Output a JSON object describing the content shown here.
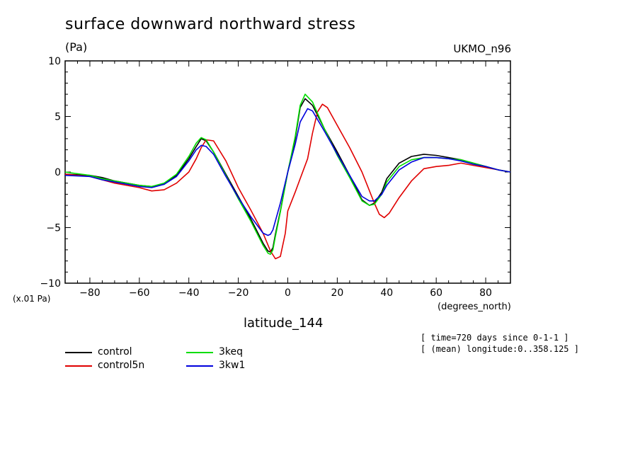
{
  "chart_data": {
    "type": "line",
    "title": "surface downward northward stress",
    "units_label": "(Pa)",
    "model_label": "UKMO_n96",
    "scale_label": "(x.01 Pa)",
    "xlabel": "latitude_144",
    "x_units_label": "(degrees_north)",
    "meta": [
      "[ time=720 days since 0-1-1 ]",
      "[ (mean) longitude:0..358.125 ]"
    ],
    "xlim": [
      -90,
      90
    ],
    "ylim": [
      -10,
      10
    ],
    "xticks": [
      -80,
      -60,
      -40,
      -20,
      0,
      20,
      40,
      60,
      80
    ],
    "yticks": [
      -10,
      -5,
      0,
      5,
      10
    ],
    "ytick_labels": [
      "−10",
      "−5",
      "0",
      "5",
      "10"
    ],
    "xtick_labels": [
      "−80",
      "−60",
      "−40",
      "−20",
      "0",
      "20",
      "40",
      "60",
      "80"
    ],
    "grid": false,
    "legend_placement": "bottom-left",
    "series": [
      {
        "name": "control",
        "color": "#000000",
        "x": [
          -90,
          -80,
          -75,
          -70,
          -60,
          -55,
          -50,
          -45,
          -40,
          -37,
          -35,
          -33,
          -30,
          -25,
          -20,
          -15,
          -10,
          -8,
          -7,
          -6,
          -5,
          -3,
          0,
          3,
          5,
          7,
          10,
          15,
          20,
          25,
          30,
          33,
          35,
          38,
          40,
          45,
          50,
          55,
          60,
          65,
          70,
          75,
          80,
          85,
          90
        ],
        "y": [
          -0.2,
          -0.3,
          -0.5,
          -0.8,
          -1.2,
          -1.3,
          -1.1,
          -0.3,
          1.2,
          2.3,
          3.0,
          2.8,
          1.8,
          -0.2,
          -2.2,
          -4.2,
          -6.4,
          -7.1,
          -7.2,
          -6.8,
          -5.6,
          -3.5,
          0.0,
          3.0,
          5.8,
          6.6,
          6.0,
          3.8,
          1.8,
          -0.3,
          -2.5,
          -3.0,
          -2.8,
          -1.8,
          -0.6,
          0.8,
          1.4,
          1.6,
          1.5,
          1.3,
          1.1,
          0.8,
          0.5,
          0.2,
          0.0
        ]
      },
      {
        "name": "control5n",
        "color": "#e00000",
        "x": [
          -90,
          -80,
          -75,
          -70,
          -60,
          -55,
          -50,
          -45,
          -40,
          -37,
          -35,
          -33,
          -30,
          -25,
          -20,
          -15,
          -10,
          -7,
          -5,
          -3,
          -1,
          0,
          3,
          5,
          8,
          10,
          12,
          14,
          16,
          20,
          25,
          30,
          35,
          37,
          39,
          41,
          45,
          50,
          55,
          60,
          65,
          70,
          75,
          80,
          85,
          90
        ],
        "y": [
          -0.2,
          -0.4,
          -0.7,
          -1.0,
          -1.4,
          -1.7,
          -1.6,
          -1.0,
          0.0,
          1.2,
          2.2,
          2.9,
          2.8,
          1.0,
          -1.4,
          -3.4,
          -5.5,
          -7.1,
          -7.8,
          -7.6,
          -5.5,
          -3.5,
          -1.8,
          -0.6,
          1.2,
          3.5,
          5.4,
          6.1,
          5.8,
          4.2,
          2.2,
          0.0,
          -2.8,
          -3.8,
          -4.1,
          -3.7,
          -2.3,
          -0.8,
          0.3,
          0.5,
          0.6,
          0.8,
          0.6,
          0.4,
          0.2,
          0.0
        ]
      },
      {
        "name": "3keq",
        "color": "#00dd00",
        "x": [
          -90,
          -80,
          -75,
          -70,
          -60,
          -55,
          -50,
          -45,
          -40,
          -37,
          -35,
          -33,
          -30,
          -25,
          -20,
          -15,
          -10,
          -8,
          -7,
          -6,
          -5,
          -3,
          0,
          3,
          5,
          7,
          10,
          15,
          20,
          25,
          30,
          33,
          35,
          38,
          40,
          45,
          50,
          55,
          60,
          65,
          70,
          75,
          80,
          85,
          90
        ],
        "y": [
          0.0,
          -0.3,
          -0.6,
          -0.8,
          -1.2,
          -1.3,
          -1.0,
          -0.2,
          1.4,
          2.6,
          3.1,
          2.9,
          1.8,
          -0.3,
          -2.4,
          -4.4,
          -6.6,
          -7.3,
          -7.4,
          -7.0,
          -5.8,
          -3.6,
          0.0,
          3.2,
          6.0,
          7.0,
          6.3,
          3.8,
          1.5,
          -0.5,
          -2.6,
          -3.0,
          -2.9,
          -2.0,
          -0.9,
          0.5,
          1.1,
          1.3,
          1.3,
          1.2,
          1.1,
          0.8,
          0.5,
          0.2,
          0.0
        ]
      },
      {
        "name": "3kw1",
        "color": "#0000dd",
        "x": [
          -90,
          -80,
          -75,
          -70,
          -60,
          -55,
          -50,
          -45,
          -40,
          -37,
          -35,
          -33,
          -30,
          -25,
          -20,
          -15,
          -10,
          -8,
          -7,
          -6,
          -5,
          -3,
          0,
          3,
          5,
          8,
          10,
          15,
          20,
          25,
          30,
          33,
          35,
          38,
          40,
          45,
          50,
          55,
          60,
          65,
          70,
          75,
          80,
          85,
          90
        ],
        "y": [
          -0.3,
          -0.4,
          -0.7,
          -0.9,
          -1.3,
          -1.4,
          -1.1,
          -0.4,
          1.0,
          2.0,
          2.4,
          2.3,
          1.6,
          -0.4,
          -2.3,
          -4.0,
          -5.5,
          -5.7,
          -5.6,
          -5.2,
          -4.4,
          -2.8,
          0.0,
          2.5,
          4.5,
          5.7,
          5.5,
          3.6,
          1.6,
          -0.3,
          -2.2,
          -2.6,
          -2.6,
          -2.0,
          -1.2,
          0.2,
          0.9,
          1.3,
          1.3,
          1.2,
          1.0,
          0.7,
          0.5,
          0.2,
          0.0
        ]
      }
    ]
  }
}
